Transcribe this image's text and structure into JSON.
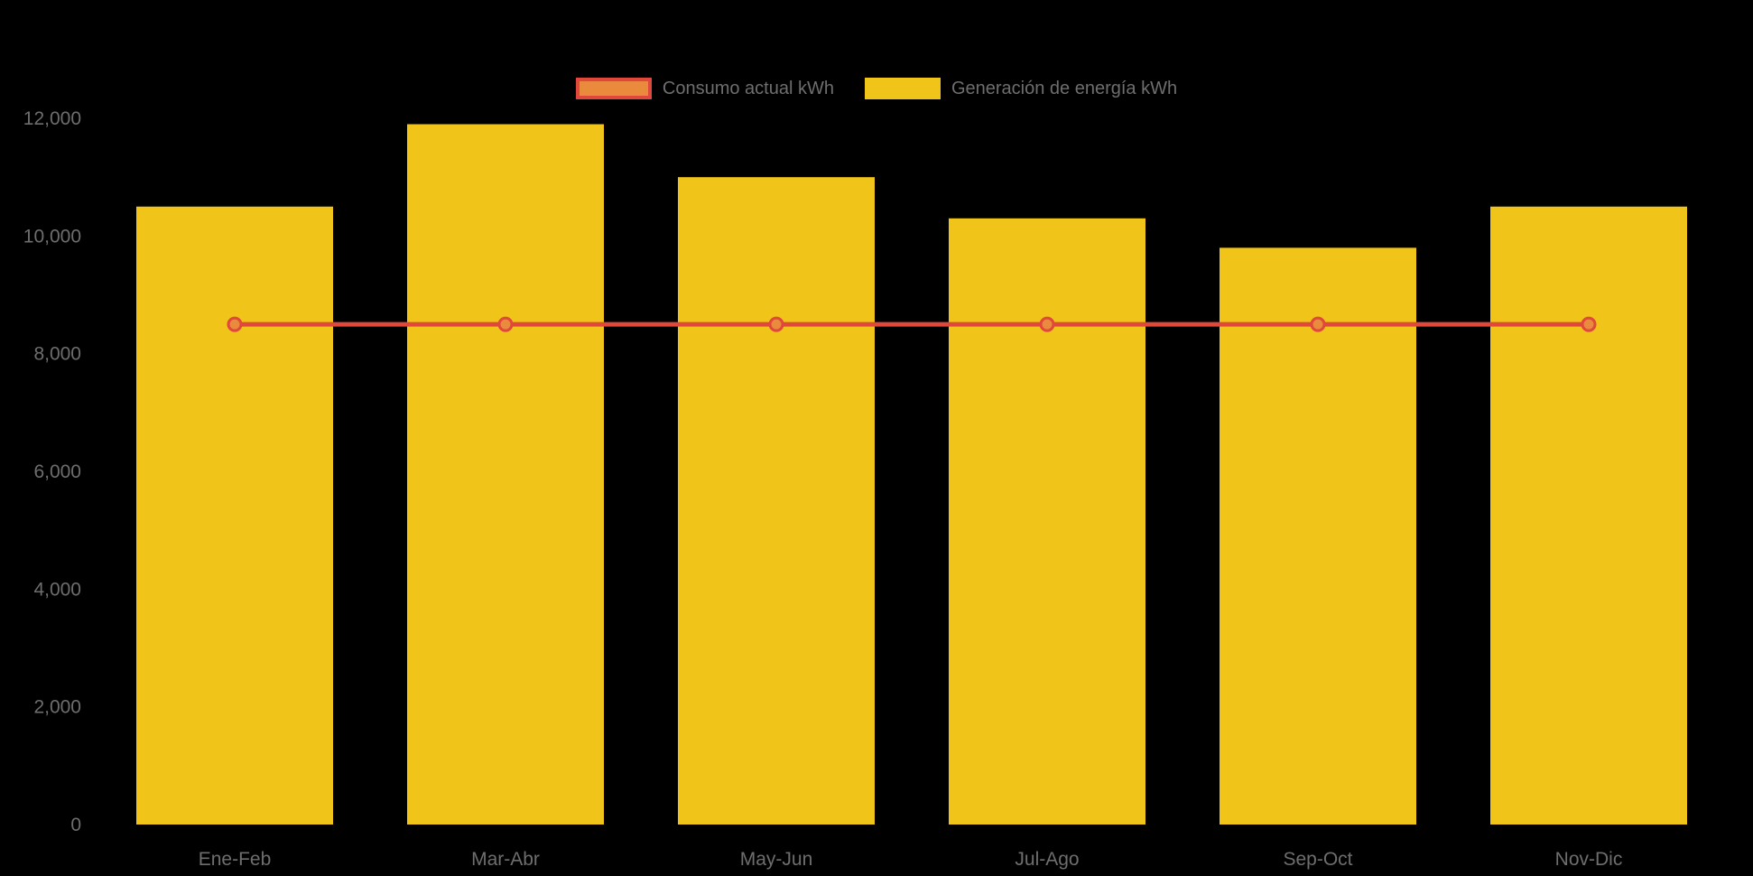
{
  "chart_data": {
    "type": "bar",
    "subtype": "bar-with-line-overlay",
    "title": "",
    "categories": [
      "Ene-Feb",
      "Mar-Abr",
      "May-Jun",
      "Jul-Ago",
      "Sep-Oct",
      "Nov-Dic"
    ],
    "series": [
      {
        "name": "Consumo actual kWh",
        "type": "line",
        "color": "#e0483c",
        "marker_fill": "#e98a3c",
        "values": [
          8500,
          8500,
          8500,
          8500,
          8500,
          8500
        ]
      },
      {
        "name": "Generación de energía kWh",
        "type": "bar",
        "color": "#f0c419",
        "values": [
          10500,
          11900,
          11000,
          10300,
          9800,
          10500
        ]
      }
    ],
    "xlabel": "",
    "ylabel": "",
    "ylim": [
      0,
      12000
    ],
    "yticks": [
      0,
      2000,
      4000,
      6000,
      8000,
      10000,
      12000
    ],
    "ytick_labels": [
      "0",
      "2,000",
      "4,000",
      "6,000",
      "8,000",
      "10,000",
      "12,000"
    ],
    "legend_position": "top-center",
    "grid": false,
    "background": "#000000",
    "axis_text_color": "#6e6e6e"
  },
  "legend": {
    "items": [
      {
        "label": "Consumo actual kWh",
        "swatch_fill": "#e98a3c",
        "swatch_border": "#e0483c"
      },
      {
        "label": "Generación de energía kWh",
        "swatch_fill": "#f0c419",
        "swatch_border": "#f0c419"
      }
    ]
  }
}
